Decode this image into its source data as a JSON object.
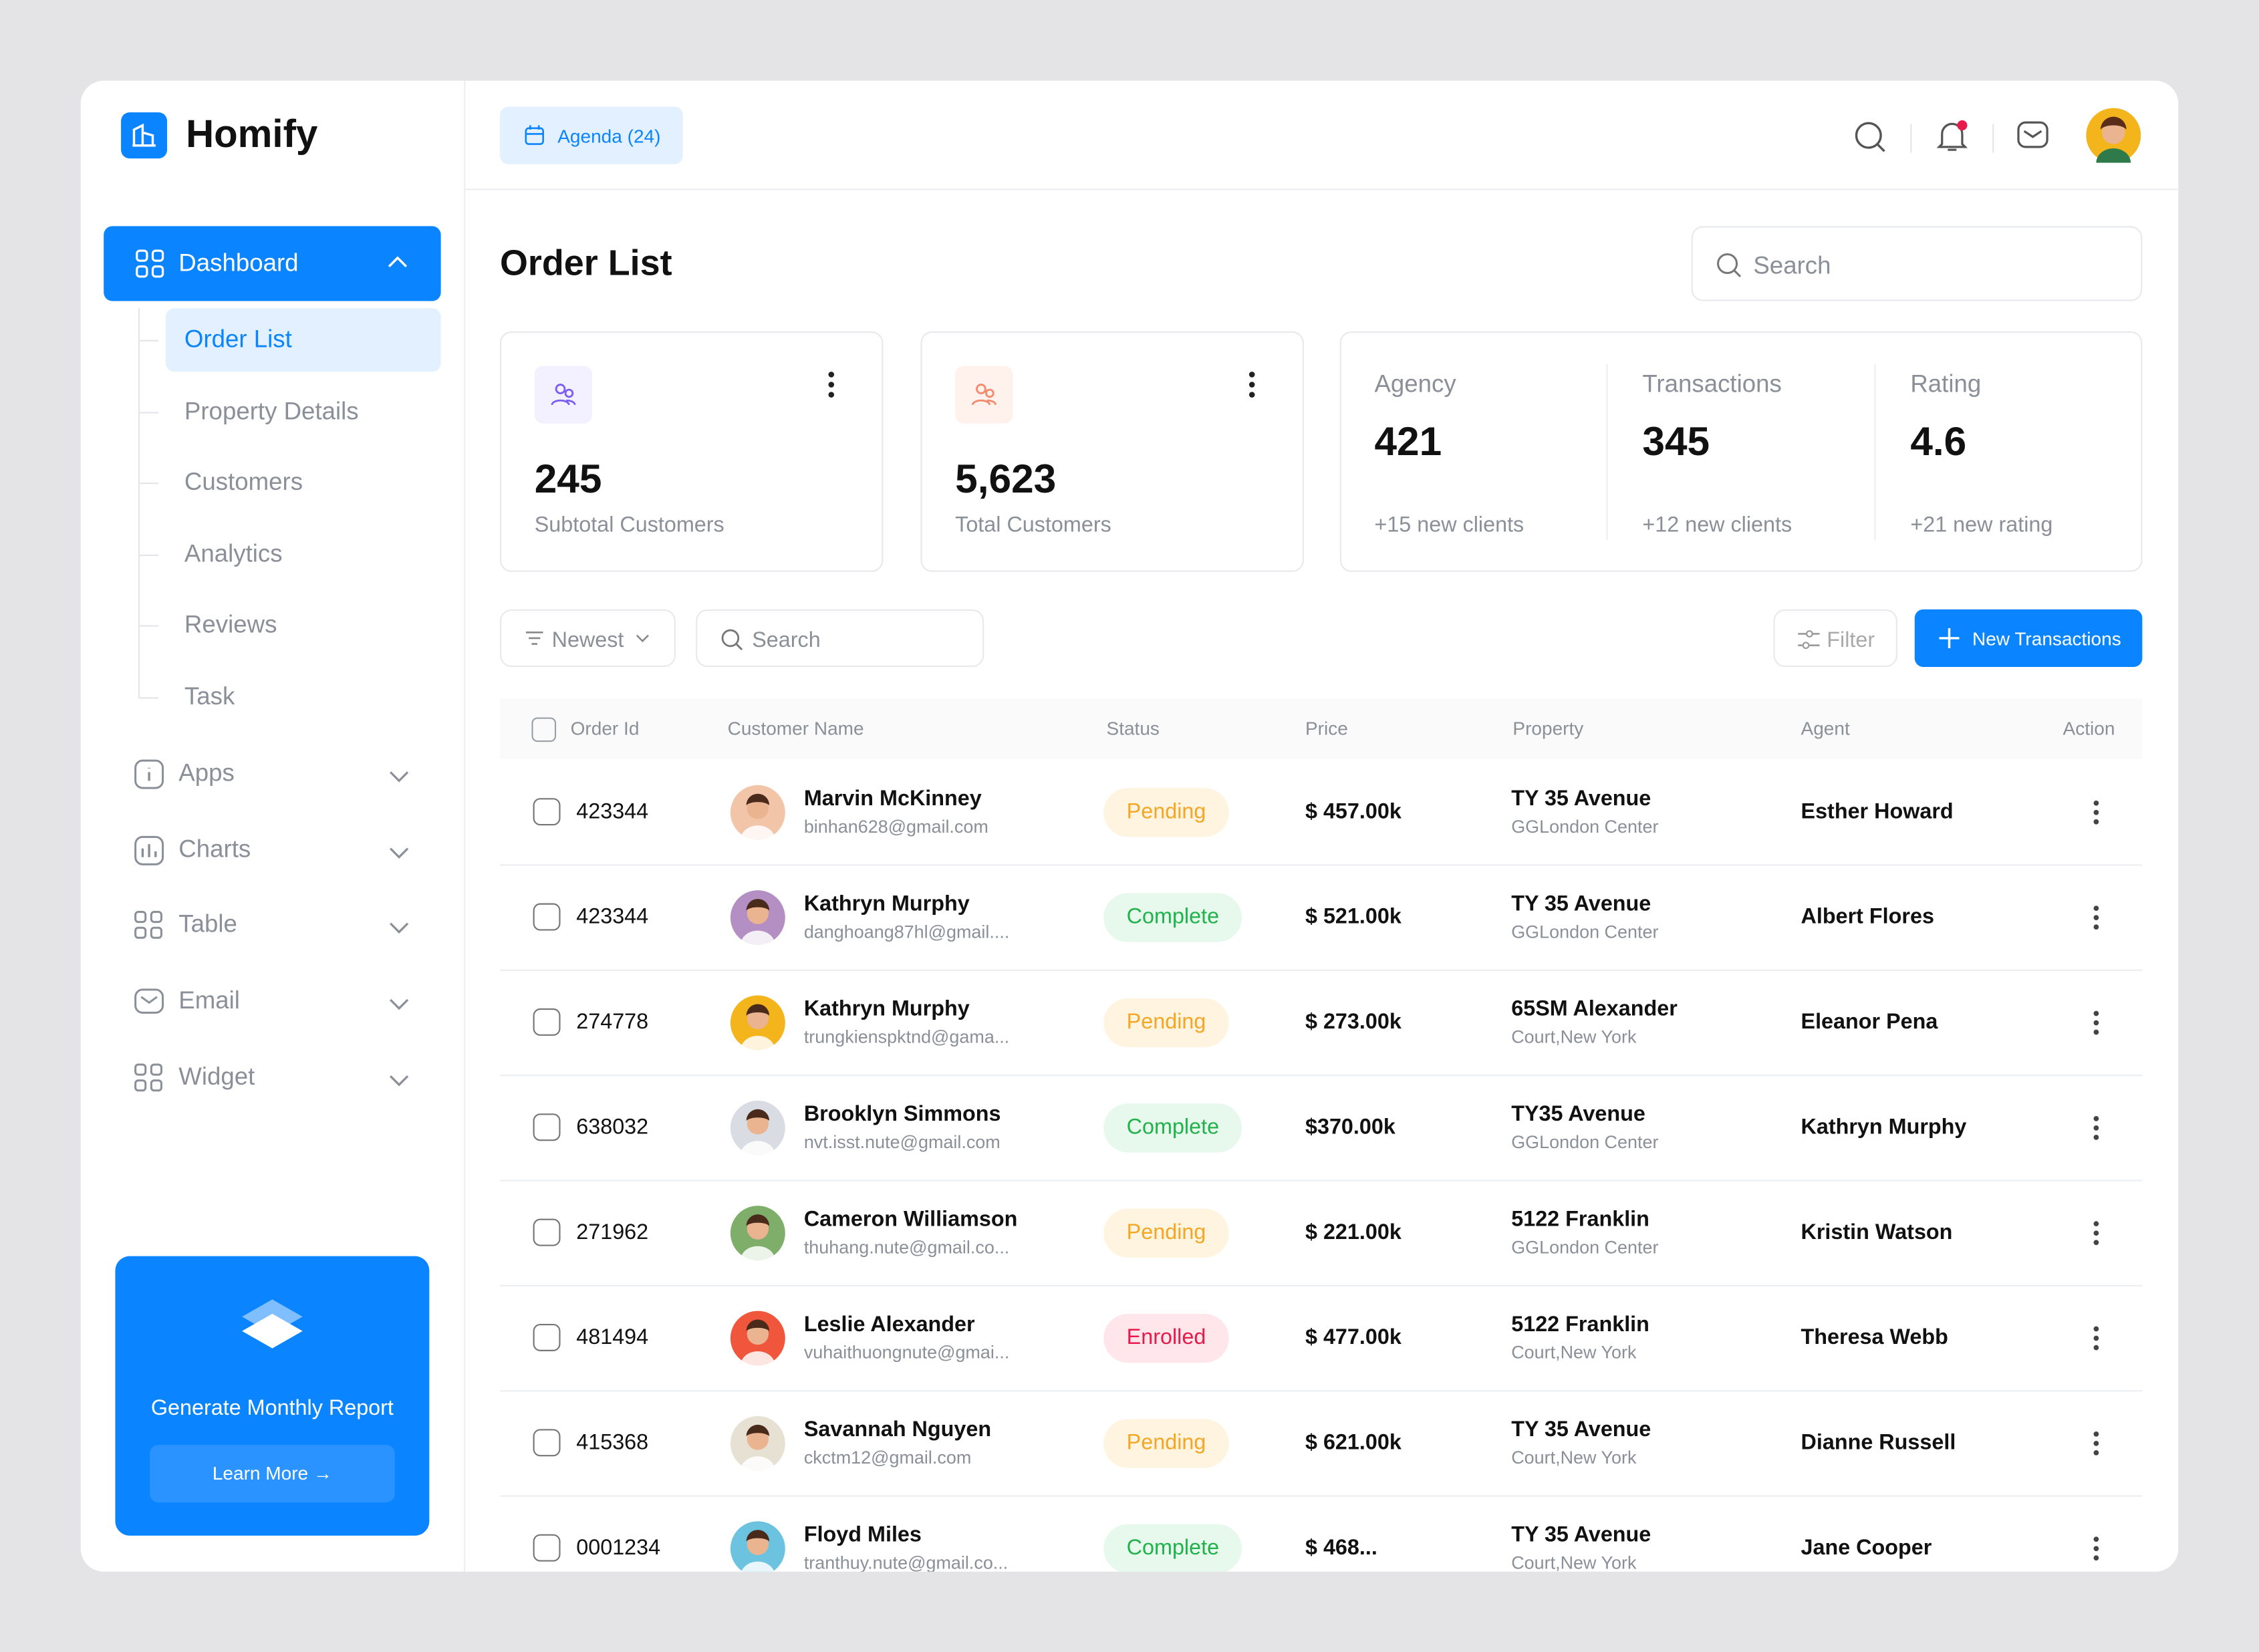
{
  "brand": "Homify",
  "agenda": "Agenda (24)",
  "sidebar": {
    "main": "Dashboard",
    "sub": [
      "Order List",
      "Property Details",
      "Customers",
      "Analytics",
      "Reviews",
      "Task"
    ],
    "groups": [
      "Apps",
      "Charts",
      "Table",
      "Email",
      "Widget"
    ],
    "promo": {
      "title": "Generate Monthly Report",
      "button": "Learn More"
    }
  },
  "page": {
    "title": "Order List",
    "search": "Search"
  },
  "cards": [
    {
      "value": "245",
      "label": "Subtotal Customers",
      "color": "#7b5cf5",
      "bg": "#f3f0ff"
    },
    {
      "value": "5,623",
      "label": "Total Customers",
      "color": "#f28a6b",
      "bg": "#fff1ec"
    }
  ],
  "metrics": [
    {
      "label": "Agency",
      "value": "421",
      "note": "+15 new clients"
    },
    {
      "label": "Transactions",
      "value": "345",
      "note": "+12 new clients"
    },
    {
      "label": "Rating",
      "value": "4.6",
      "note": "+21 new rating"
    }
  ],
  "toolbar": {
    "sort": "Newest",
    "search": "Search",
    "filter": "Filter",
    "button": "New Transactions"
  },
  "table": {
    "columns": [
      "Order Id",
      "Customer Name",
      "Status",
      "Price",
      "Property",
      "Agent",
      "Action"
    ],
    "rows": [
      {
        "id": "423344",
        "name": "Marvin McKinney",
        "email": "binhan628@gmail.com",
        "status": "Pending",
        "status_color": "#f5a623",
        "status_bg": "#fff4e0",
        "price": "$ 457.00k",
        "property": "TY 35 Avenue",
        "location": "GGLondon Center",
        "agent": "Esther Howard",
        "avatar": "#f2c4a8"
      },
      {
        "id": "423344",
        "name": "Kathryn Murphy",
        "email": "danghoang87hl@gmail....",
        "status": "Complete",
        "status_color": "#22b24c",
        "status_bg": "#e6f9ec",
        "price": "$ 521.00k",
        "property": "TY 35 Avenue",
        "location": "GGLondon Center",
        "agent": "Albert Flores",
        "avatar": "#b48fc4"
      },
      {
        "id": "274778",
        "name": "Kathryn Murphy",
        "email": "trungkienspktnd@gama...",
        "status": "Pending",
        "status_color": "#f5a623",
        "status_bg": "#fff4e0",
        "price": "$ 273.00k",
        "property": "65SM Alexander",
        "location": "Court,New York",
        "agent": "Eleanor Pena",
        "avatar": "#f3b41c"
      },
      {
        "id": "638032",
        "name": "Brooklyn Simmons",
        "email": "nvt.isst.nute@gmail.com",
        "status": "Complete",
        "status_color": "#22b24c",
        "status_bg": "#e6f9ec",
        "price": "$370.00k",
        "property": "TY35 Avenue",
        "location": "GGLondon Center",
        "agent": "Kathryn Murphy",
        "avatar": "#d9dde3"
      },
      {
        "id": "271962",
        "name": "Cameron Williamson",
        "email": "thuhang.nute@gmail.co...",
        "status": "Pending",
        "status_color": "#f5a623",
        "status_bg": "#fff4e0",
        "price": "$ 221.00k",
        "property": "5122 Franklin",
        "location": "GGLondon Center",
        "agent": "Kristin Watson",
        "avatar": "#7fae6b"
      },
      {
        "id": "481494",
        "name": "Leslie Alexander",
        "email": "vuhaithuongnute@gmai...",
        "status": "Enrolled",
        "status_color": "#e8194b",
        "status_bg": "#ffe6ea",
        "price": "$ 477.00k",
        "property": "5122 Franklin",
        "location": "Court,New York",
        "agent": "Theresa Webb",
        "avatar": "#f0563c"
      },
      {
        "id": "415368",
        "name": "Savannah Nguyen",
        "email": "ckctm12@gmail.com",
        "status": "Pending",
        "status_color": "#f5a623",
        "status_bg": "#fff4e0",
        "price": "$ 621.00k",
        "property": "TY 35 Avenue",
        "location": "Court,New York",
        "agent": "Dianne Russell",
        "avatar": "#e7e1d4"
      },
      {
        "id": "0001234",
        "name": "Floyd Miles",
        "email": "tranthuy.nute@gmail.co...",
        "status": "Complete",
        "status_color": "#22b24c",
        "status_bg": "#e6f9ec",
        "price": "$ 468...",
        "property": "TY 35 Avenue",
        "location": "Court,New York",
        "agent": "Jane Cooper",
        "avatar": "#6cc3e0"
      }
    ]
  }
}
